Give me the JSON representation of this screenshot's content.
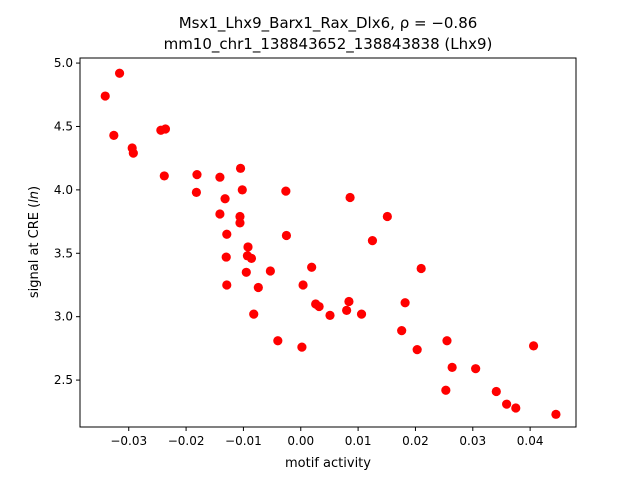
{
  "chart_data": {
    "type": "scatter",
    "title_line1": "Msx1_Lhx9_Barx1_Rax_Dlx6, ",
    "title_rho": "ρ = −0.86",
    "title_line2": "mm10_chr1_138843652_138843838 (Lhx9)",
    "xlabel": "motif activity",
    "ylabel": "signal at CRE (",
    "ylabel_italic": "ln",
    "ylabel_end": ")",
    "xlim": [
      -0.0385,
      0.048
    ],
    "ylim": [
      2.13,
      5.04
    ],
    "xticks": [
      -0.03,
      -0.02,
      -0.01,
      0.0,
      0.01,
      0.02,
      0.03,
      0.04
    ],
    "xtick_labels": [
      "−0.03",
      "−0.02",
      "−0.01",
      "0.00",
      "0.01",
      "0.02",
      "0.03",
      "0.04"
    ],
    "yticks": [
      2.5,
      3.0,
      3.5,
      4.0,
      4.5,
      5.0
    ],
    "ytick_labels": [
      "2.5",
      "3.0",
      "3.5",
      "4.0",
      "4.5",
      "5.0"
    ],
    "marker_color": "#ff0000",
    "points": [
      {
        "x": -0.0341,
        "y": 4.74
      },
      {
        "x": -0.0316,
        "y": 4.92
      },
      {
        "x": -0.0326,
        "y": 4.43
      },
      {
        "x": -0.0294,
        "y": 4.33
      },
      {
        "x": -0.0292,
        "y": 4.29
      },
      {
        "x": -0.0244,
        "y": 4.47
      },
      {
        "x": -0.0236,
        "y": 4.48
      },
      {
        "x": -0.0238,
        "y": 4.11
      },
      {
        "x": -0.0181,
        "y": 4.12
      },
      {
        "x": -0.0182,
        "y": 3.98
      },
      {
        "x": -0.0141,
        "y": 4.1
      },
      {
        "x": -0.0132,
        "y": 3.93
      },
      {
        "x": -0.0141,
        "y": 3.81
      },
      {
        "x": -0.0105,
        "y": 4.17
      },
      {
        "x": -0.0102,
        "y": 4.0
      },
      {
        "x": -0.0106,
        "y": 3.79
      },
      {
        "x": -0.0106,
        "y": 3.74
      },
      {
        "x": -0.0129,
        "y": 3.65
      },
      {
        "x": -0.0092,
        "y": 3.55
      },
      {
        "x": -0.0093,
        "y": 3.48
      },
      {
        "x": -0.0086,
        "y": 3.46
      },
      {
        "x": -0.013,
        "y": 3.47
      },
      {
        "x": -0.0095,
        "y": 3.35
      },
      {
        "x": -0.0129,
        "y": 3.25
      },
      {
        "x": -0.0074,
        "y": 3.23
      },
      {
        "x": -0.0082,
        "y": 3.02
      },
      {
        "x": -0.0026,
        "y": 3.99
      },
      {
        "x": -0.0025,
        "y": 3.64
      },
      {
        "x": -0.0053,
        "y": 3.36
      },
      {
        "x": -0.004,
        "y": 2.81
      },
      {
        "x": 0.0002,
        "y": 2.76
      },
      {
        "x": 0.0004,
        "y": 3.25
      },
      {
        "x": 0.0019,
        "y": 3.39
      },
      {
        "x": 0.0026,
        "y": 3.1
      },
      {
        "x": 0.0032,
        "y": 3.08
      },
      {
        "x": 0.0051,
        "y": 3.01
      },
      {
        "x": 0.0086,
        "y": 3.94
      },
      {
        "x": 0.0084,
        "y": 3.12
      },
      {
        "x": 0.008,
        "y": 3.05
      },
      {
        "x": 0.0106,
        "y": 3.02
      },
      {
        "x": 0.0125,
        "y": 3.6
      },
      {
        "x": 0.0151,
        "y": 3.79
      },
      {
        "x": 0.0182,
        "y": 3.11
      },
      {
        "x": 0.0176,
        "y": 2.89
      },
      {
        "x": 0.021,
        "y": 3.38
      },
      {
        "x": 0.0203,
        "y": 2.74
      },
      {
        "x": 0.0255,
        "y": 2.81
      },
      {
        "x": 0.0264,
        "y": 2.6
      },
      {
        "x": 0.0253,
        "y": 2.42
      },
      {
        "x": 0.0305,
        "y": 2.59
      },
      {
        "x": 0.0341,
        "y": 2.41
      },
      {
        "x": 0.0359,
        "y": 2.31
      },
      {
        "x": 0.0375,
        "y": 2.28
      },
      {
        "x": 0.0406,
        "y": 2.77
      },
      {
        "x": 0.0445,
        "y": 2.23
      }
    ]
  }
}
